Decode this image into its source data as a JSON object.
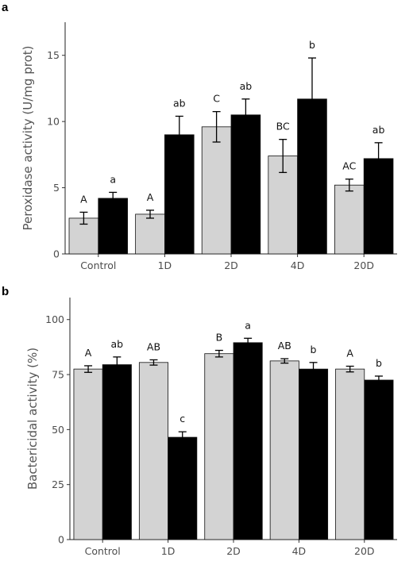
{
  "chart_data": [
    {
      "panel": "a",
      "type": "bar",
      "ylabel": "Peroxidase activity (U/mg prot)",
      "categories": [
        "Control",
        "1D",
        "2D",
        "4D",
        "20D"
      ],
      "ylim": [
        0,
        17.5
      ],
      "yticks": [
        0,
        5,
        10,
        15
      ],
      "grid": false,
      "series": [
        {
          "color": "#d3d3d3",
          "values": [
            2.7,
            3.0,
            9.6,
            7.4,
            5.2
          ],
          "errors": [
            0.45,
            0.3,
            1.15,
            1.25,
            0.45
          ],
          "labels": [
            "A",
            "A",
            "C",
            "BC",
            "AC"
          ]
        },
        {
          "color": "#000000",
          "values": [
            4.2,
            9.0,
            10.5,
            11.7,
            7.2
          ],
          "errors": [
            0.45,
            1.4,
            1.2,
            3.1,
            1.2
          ],
          "labels": [
            "a",
            "ab",
            "ab",
            "b",
            "ab"
          ]
        }
      ]
    },
    {
      "panel": "b",
      "type": "bar",
      "ylabel": "Bactericidal activity (%)",
      "categories": [
        "Control",
        "1D",
        "2D",
        "4D",
        "20D"
      ],
      "ylim": [
        0,
        110
      ],
      "yticks": [
        0,
        25,
        50,
        75,
        100
      ],
      "grid": false,
      "series": [
        {
          "color": "#d3d3d3",
          "values": [
            77.5,
            80.5,
            84.5,
            81.2,
            77.5
          ],
          "errors": [
            1.5,
            1.2,
            1.5,
            1.0,
            1.3
          ],
          "labels": [
            "A",
            "AB",
            "B",
            "AB",
            "A"
          ]
        },
        {
          "color": "#000000",
          "values": [
            79.5,
            46.5,
            89.5,
            77.5,
            72.5
          ],
          "errors": [
            3.5,
            2.5,
            2.0,
            3.0,
            1.8
          ],
          "labels": [
            "ab",
            "c",
            "a",
            "b",
            "b"
          ]
        }
      ]
    }
  ]
}
